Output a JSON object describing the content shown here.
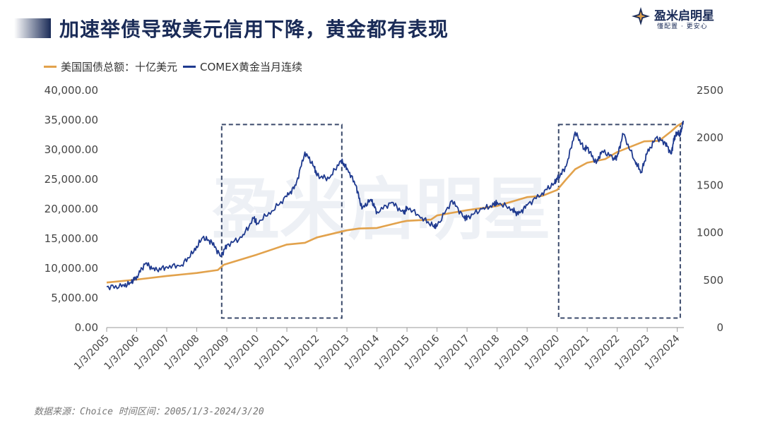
{
  "header": {
    "title": "加速举债导致美元信用下降，黄金都有表现",
    "logo_name": "盈米启明星",
    "logo_slogan": "懂配置 · 更安心",
    "watermark": "盈米启明星"
  },
  "source": "数据来源：Choice 时间区间：2005/1/3-2024/3/20",
  "colors": {
    "debt": "#e2a24c",
    "gold": "#1f3a8f",
    "title": "#1a2b57",
    "box": "#3b4a6b"
  },
  "chart_data": {
    "type": "line",
    "legend_position": "top-left",
    "x_tick_labels": [
      "1/3/2005",
      "1/3/2006",
      "1/3/2007",
      "1/3/2008",
      "1/3/2009",
      "1/3/2010",
      "1/3/2011",
      "1/3/2012",
      "1/3/2013",
      "1/3/2014",
      "1/3/2015",
      "1/3/2016",
      "1/3/2017",
      "1/3/2018",
      "1/3/2019",
      "1/3/2020",
      "1/3/2021",
      "1/3/2022",
      "1/3/2023",
      "1/3/2024"
    ],
    "y_left": {
      "range": [
        0,
        40000
      ],
      "ticks": [
        "0.00",
        "5,000.00",
        "10,000.00",
        "15,000.00",
        "20,000.00",
        "25,000.00",
        "30,000.00",
        "35,000.00",
        "40,000.00"
      ]
    },
    "y_right": {
      "range": [
        0,
        2500
      ],
      "ticks": [
        "0",
        "500",
        "1000",
        "1500",
        "2000",
        "2500"
      ]
    },
    "grid": false,
    "highlight_boxes": [
      {
        "x_start": 2008.83,
        "x_end": 2012.83,
        "y_right_low": 100,
        "y_right_high": 2140
      },
      {
        "x_start": 2020.05,
        "x_end": 2024.1,
        "y_right_low": 100,
        "y_right_high": 2140
      }
    ],
    "series": [
      {
        "name": "美国国债总额：十亿美元",
        "axis": "left",
        "points": [
          [
            2005.0,
            7600
          ],
          [
            2006.0,
            8100
          ],
          [
            2007.0,
            8700
          ],
          [
            2008.0,
            9200
          ],
          [
            2008.7,
            9700
          ],
          [
            2008.9,
            10600
          ],
          [
            2010.0,
            12300
          ],
          [
            2011.0,
            14000
          ],
          [
            2011.6,
            14300
          ],
          [
            2012.0,
            15200
          ],
          [
            2013.0,
            16400
          ],
          [
            2013.4,
            16700
          ],
          [
            2014.0,
            16800
          ],
          [
            2014.8,
            17800
          ],
          [
            2015.0,
            18000
          ],
          [
            2015.8,
            18200
          ],
          [
            2016.0,
            18900
          ],
          [
            2017.0,
            19800
          ],
          [
            2018.0,
            20500
          ],
          [
            2019.0,
            22000
          ],
          [
            2019.5,
            22200
          ],
          [
            2020.0,
            23200
          ],
          [
            2020.3,
            25000
          ],
          [
            2020.6,
            26700
          ],
          [
            2021.0,
            27800
          ],
          [
            2021.6,
            28400
          ],
          [
            2022.0,
            29600
          ],
          [
            2022.9,
            31400
          ],
          [
            2023.4,
            31500
          ],
          [
            2023.8,
            33100
          ],
          [
            2024.0,
            34000
          ],
          [
            2024.2,
            34600
          ]
        ]
      },
      {
        "name": "COMEX黄金当月连续",
        "axis": "right",
        "points": [
          [
            2005.0,
            430
          ],
          [
            2005.5,
            430
          ],
          [
            2005.8,
            470
          ],
          [
            2006.0,
            540
          ],
          [
            2006.3,
            680
          ],
          [
            2006.6,
            600
          ],
          [
            2007.0,
            640
          ],
          [
            2007.5,
            660
          ],
          [
            2007.9,
            800
          ],
          [
            2008.2,
            950
          ],
          [
            2008.5,
            900
          ],
          [
            2008.8,
            750
          ],
          [
            2009.0,
            870
          ],
          [
            2009.5,
            950
          ],
          [
            2009.9,
            1150
          ],
          [
            2010.0,
            1100
          ],
          [
            2010.5,
            1230
          ],
          [
            2011.0,
            1380
          ],
          [
            2011.3,
            1500
          ],
          [
            2011.6,
            1850
          ],
          [
            2011.9,
            1700
          ],
          [
            2012.0,
            1600
          ],
          [
            2012.4,
            1570
          ],
          [
            2012.8,
            1760
          ],
          [
            2013.0,
            1680
          ],
          [
            2013.3,
            1500
          ],
          [
            2013.5,
            1250
          ],
          [
            2013.8,
            1350
          ],
          [
            2014.0,
            1220
          ],
          [
            2014.5,
            1320
          ],
          [
            2014.9,
            1200
          ],
          [
            2015.0,
            1270
          ],
          [
            2015.5,
            1160
          ],
          [
            2015.9,
            1060
          ],
          [
            2016.0,
            1070
          ],
          [
            2016.5,
            1340
          ],
          [
            2016.9,
            1160
          ],
          [
            2017.0,
            1160
          ],
          [
            2017.5,
            1250
          ],
          [
            2017.9,
            1290
          ],
          [
            2018.0,
            1320
          ],
          [
            2018.5,
            1250
          ],
          [
            2018.7,
            1190
          ],
          [
            2019.0,
            1290
          ],
          [
            2019.5,
            1420
          ],
          [
            2019.9,
            1520
          ],
          [
            2020.0,
            1560
          ],
          [
            2020.3,
            1700
          ],
          [
            2020.6,
            2060
          ],
          [
            2020.9,
            1880
          ],
          [
            2021.0,
            1900
          ],
          [
            2021.3,
            1730
          ],
          [
            2021.5,
            1860
          ],
          [
            2021.9,
            1790
          ],
          [
            2022.0,
            1800
          ],
          [
            2022.2,
            2040
          ],
          [
            2022.6,
            1750
          ],
          [
            2022.8,
            1640
          ],
          [
            2023.0,
            1840
          ],
          [
            2023.3,
            2000
          ],
          [
            2023.6,
            1950
          ],
          [
            2023.8,
            1830
          ],
          [
            2023.9,
            2000
          ],
          [
            2024.0,
            2050
          ],
          [
            2024.1,
            2030
          ],
          [
            2024.2,
            2180
          ]
        ]
      }
    ]
  }
}
